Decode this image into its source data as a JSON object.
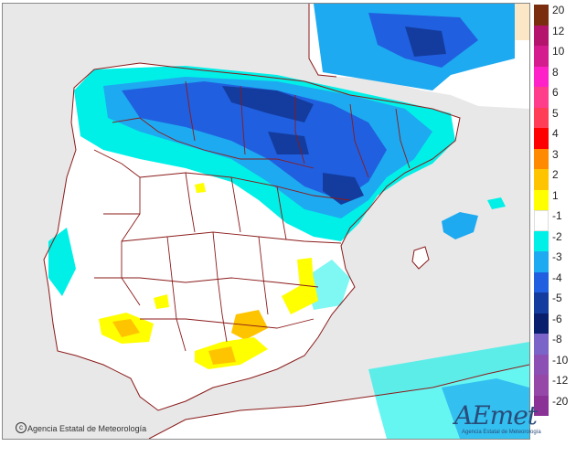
{
  "legend": {
    "items": [
      {
        "label": "20",
        "color": "#7a2e0f"
      },
      {
        "label": "12",
        "color": "#b5146c"
      },
      {
        "label": "10",
        "color": "#d41c8e"
      },
      {
        "label": "8",
        "color": "#ff21c8"
      },
      {
        "label": "6",
        "color": "#ff3d8a"
      },
      {
        "label": "5",
        "color": "#ff3d57"
      },
      {
        "label": "4",
        "color": "#ff0000"
      },
      {
        "label": "3",
        "color": "#ff8a00"
      },
      {
        "label": "2",
        "color": "#ffc400"
      },
      {
        "label": "1",
        "color": "#ffff00"
      },
      {
        "label": "-1",
        "color": "#ffffff"
      },
      {
        "label": "-2",
        "color": "#00f0e8"
      },
      {
        "label": "-3",
        "color": "#1eaaf0"
      },
      {
        "label": "-4",
        "color": "#2060e0"
      },
      {
        "label": "-5",
        "color": "#143c9e"
      },
      {
        "label": "-6",
        "color": "#0a1e6e"
      },
      {
        "label": "-8",
        "color": "#7a64c8"
      },
      {
        "label": "-10",
        "color": "#8c50b4"
      },
      {
        "label": "-12",
        "color": "#9648a8"
      },
      {
        "label": "-20",
        "color": "#8a3296"
      }
    ]
  },
  "credit": "Agencia Estatal de Meteorología",
  "logo": {
    "word": "AEmet",
    "subtitle": "Agencia Estatal de Meteorología"
  },
  "colors": {
    "sea": "#e8e8e8",
    "land": "#ffffff",
    "border": "#8b1a1a",
    "cyan": "#00f0e8",
    "lightblue": "#1eaaf0",
    "blue": "#2060e0",
    "darkblue": "#143c9e",
    "yellow": "#ffff00",
    "amber": "#ffc400"
  }
}
